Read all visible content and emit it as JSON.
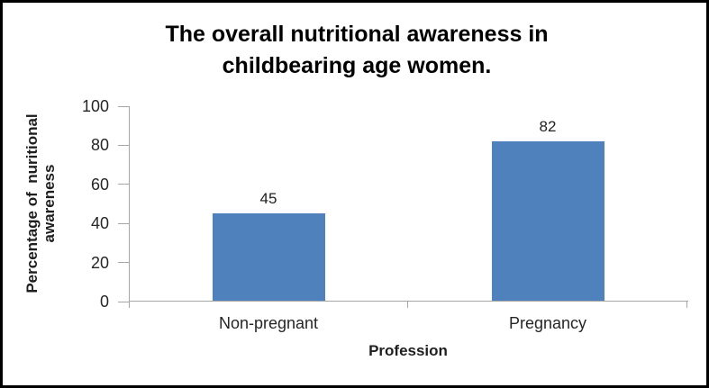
{
  "window": {
    "background": "#ffffff",
    "border_color": "#000000"
  },
  "chart_data": {
    "type": "bar",
    "title": "The overall nutritional awareness in childbearing age women.",
    "categories": [
      "Non-pregnant",
      "Pregnancy"
    ],
    "values": [
      45,
      82
    ],
    "xlabel": "Profession",
    "ylabel": "Percentage of  nuritional awareness",
    "ylabel_lines": [
      "Percentage of  nuritional",
      "awareness"
    ],
    "ylim": [
      0,
      100
    ],
    "yticks": [
      0,
      20,
      40,
      60,
      80,
      100
    ],
    "grid": false,
    "legend": false,
    "bar_color": "#4F81BD",
    "axis_color": "#A6A6A6",
    "title_color": "#000000",
    "text_color": "#262626"
  }
}
